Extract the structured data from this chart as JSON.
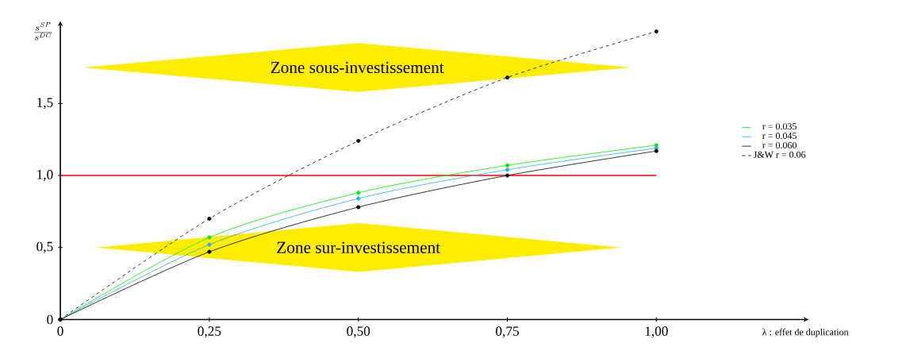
{
  "chart_data": {
    "type": "line",
    "xlabel": "λ : effet de duplication",
    "ylabel": "\\frac{s^{SP}}{s^{DC}}",
    "x": [
      0,
      0.25,
      0.5,
      0.75,
      1.0
    ],
    "series": [
      {
        "name": "r = 0.035",
        "color": "#00ee00",
        "values": [
          0,
          0.57,
          0.88,
          1.07,
          1.21
        ]
      },
      {
        "name": "r = 0.045",
        "color": "#1eb4f0",
        "values": [
          0,
          0.52,
          0.84,
          1.04,
          1.19
        ]
      },
      {
        "name": "r = 0.060",
        "color": "#000000",
        "values": [
          0,
          0.47,
          0.78,
          1.0,
          1.17
        ]
      },
      {
        "name": "J&W r = 0.06",
        "color": "#000000",
        "line_style": "dashed",
        "values": [
          0,
          0.7,
          1.24,
          1.68,
          2.0
        ]
      }
    ],
    "xlim": [
      0,
      1.25
    ],
    "ylim": [
      0,
      2.05
    ],
    "xticks": [
      0,
      {
        "value": 0.25,
        "label": "0,25"
      },
      {
        "value": 0.5,
        "label": "0,50"
      },
      {
        "value": 0.75,
        "label": "0,75"
      },
      {
        "value": 1.0,
        "label": "1,00"
      }
    ],
    "yticks": [
      0,
      {
        "value": 0.5,
        "label": "0,5"
      },
      {
        "value": 1.0,
        "label": "1,0"
      },
      {
        "value": 1.5,
        "label": "1,5"
      }
    ],
    "ref_lines": [
      {
        "axis": "y",
        "value": 1.0,
        "color": "#ff0000"
      }
    ],
    "annotations": [
      "Zone sous-investissement",
      "Zone sur-investissement"
    ],
    "marker": "circle",
    "line_style": "solid",
    "legend": "right",
    "grid": false
  }
}
